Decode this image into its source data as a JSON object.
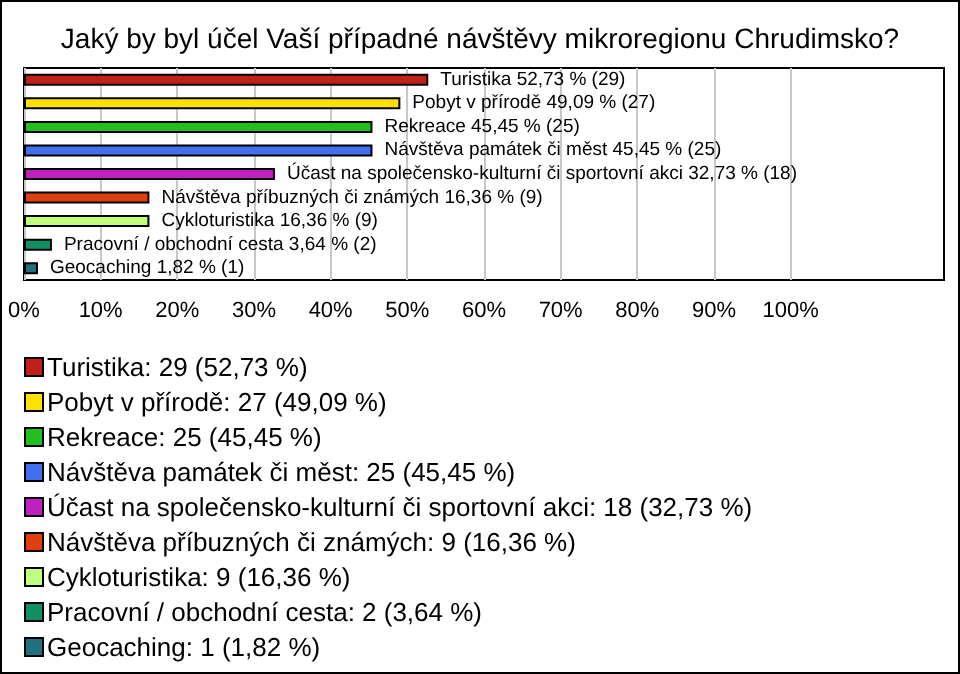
{
  "chart_data": {
    "type": "bar",
    "orientation": "horizontal",
    "title": "Jaký by byl účel Vaší případné návštěvy mikroregionu Chrudimsko?",
    "categories": [
      null,
      null,
      null,
      null,
      null,
      null,
      null,
      null,
      null
    ],
    "xlim": [
      0,
      120
    ],
    "xticks": [
      {
        "value": 0,
        "label": "0%"
      },
      {
        "value": 10,
        "label": "10%"
      },
      {
        "value": 20,
        "label": "20%"
      },
      {
        "value": 30,
        "label": "30%"
      },
      {
        "value": 40,
        "label": "40%"
      },
      {
        "value": 50,
        "label": "50%"
      },
      {
        "value": 60,
        "label": "60%"
      },
      {
        "value": 70,
        "label": "70%"
      },
      {
        "value": 80,
        "label": "80%"
      },
      {
        "value": 90,
        "label": "90%"
      },
      {
        "value": 100,
        "label": "100%"
      }
    ],
    "grid": "x",
    "legend": "bottom",
    "series": [
      {
        "name": "Turistika: 29 (52,73 %)",
        "color": "#c0201a",
        "values": [
          52.73,
          null,
          null,
          null,
          null,
          null,
          null,
          null,
          null
        ],
        "value_labels": [
          "Turistika 52,73 % (29)",
          null,
          null,
          null,
          null,
          null,
          null,
          null,
          null
        ]
      },
      {
        "name": "Pobyt v přírodě: 27 (49,09 %)",
        "color": "#ffe000",
        "values": [
          null,
          49.09,
          null,
          null,
          null,
          null,
          null,
          null,
          null
        ],
        "value_labels": [
          null,
          "Pobyt v přírodě 49,09 % (27)",
          null,
          null,
          null,
          null,
          null,
          null,
          null
        ]
      },
      {
        "name": "Rekreace: 25 (45,45 %)",
        "color": "#20c020",
        "values": [
          null,
          null,
          45.45,
          null,
          null,
          null,
          null,
          null,
          null
        ],
        "value_labels": [
          null,
          null,
          "Rekreace 45,45 % (25)",
          null,
          null,
          null,
          null,
          null,
          null
        ]
      },
      {
        "name": "Návštěva památek či měst: 25 (45,45 %)",
        "color": "#4070f0",
        "values": [
          null,
          null,
          null,
          45.45,
          null,
          null,
          null,
          null,
          null
        ],
        "value_labels": [
          null,
          null,
          null,
          "Návštěva památek či měst 45,45 % (25)",
          null,
          null,
          null,
          null,
          null
        ]
      },
      {
        "name": "Účast na společensko-kulturní či sportovní akci: 18 (32,73 %)",
        "color": "#c020c0",
        "values": [
          null,
          null,
          null,
          null,
          32.73,
          null,
          null,
          null,
          null
        ],
        "value_labels": [
          null,
          null,
          null,
          null,
          "Účast na společensko-kulturní či sportovní akci 32,73 % (18)",
          null,
          null,
          null,
          null
        ]
      },
      {
        "name": "Návštěva příbuzných či známých: 9 (16,36 %)",
        "color": "#e04010",
        "values": [
          null,
          null,
          null,
          null,
          null,
          16.36,
          null,
          null,
          null
        ],
        "value_labels": [
          null,
          null,
          null,
          null,
          null,
          "Návštěva příbuzných či známých 16,36 % (9)",
          null,
          null,
          null
        ]
      },
      {
        "name": "Cykloturistika: 9 (16,36 %)",
        "color": "#c0ff80",
        "values": [
          null,
          null,
          null,
          null,
          null,
          null,
          16.36,
          null,
          null
        ],
        "value_labels": [
          null,
          null,
          null,
          null,
          null,
          null,
          "Cykloturistika 16,36 % (9)",
          null,
          null
        ]
      },
      {
        "name": "Pracovní / obchodní cesta: 2 (3,64 %)",
        "color": "#109060",
        "values": [
          null,
          null,
          null,
          null,
          null,
          null,
          null,
          3.64,
          null
        ],
        "value_labels": [
          null,
          null,
          null,
          null,
          null,
          null,
          null,
          "Pracovní / obchodní cesta 3,64 % (2)",
          null
        ]
      },
      {
        "name": "Geocaching: 1 (1,82 %)",
        "color": "#207080",
        "values": [
          null,
          null,
          null,
          null,
          null,
          null,
          null,
          null,
          1.82
        ],
        "value_labels": [
          null,
          null,
          null,
          null,
          null,
          null,
          null,
          null,
          "Geocaching 1,82 % (1)"
        ]
      }
    ]
  }
}
